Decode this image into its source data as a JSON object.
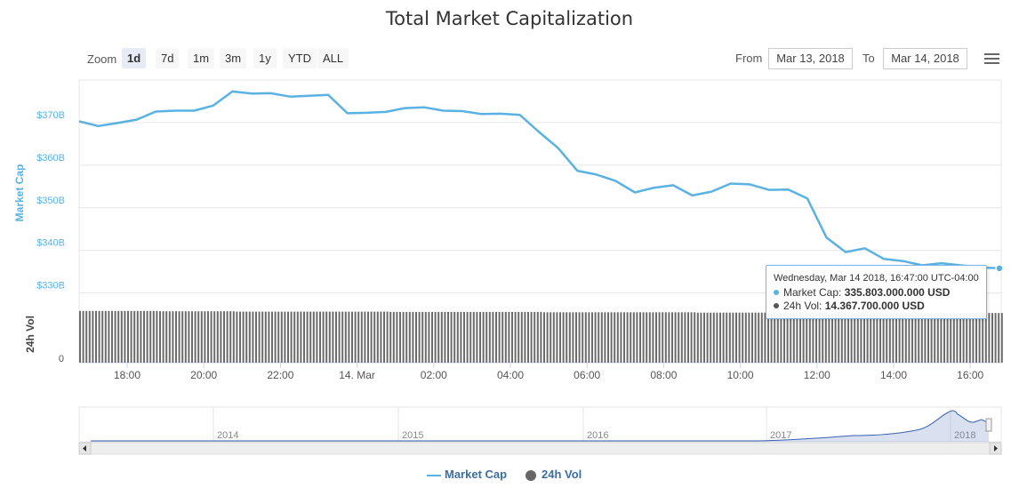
{
  "chart_data": {
    "type": "line",
    "title": "Total Market Capitalization",
    "series": [
      {
        "name": "Market Cap",
        "x": [
          "17:00",
          "17:30",
          "18:00",
          "18:30",
          "19:00",
          "19:30",
          "20:00",
          "20:30",
          "21:00",
          "21:30",
          "22:00",
          "22:30",
          "23:00",
          "23:30",
          "00:00",
          "00:30",
          "01:00",
          "01:30",
          "02:00",
          "02:30",
          "03:00",
          "03:30",
          "04:00",
          "04:30",
          "05:00",
          "05:30",
          "06:00",
          "06:30",
          "07:00",
          "07:30",
          "08:00",
          "08:30",
          "09:00",
          "09:30",
          "10:00",
          "10:30",
          "11:00",
          "11:30",
          "12:00",
          "12:30",
          "13:00",
          "13:30",
          "14:00",
          "14:30",
          "15:00",
          "15:30",
          "16:00",
          "16:30",
          "16:47"
        ],
        "values": [
          370.3,
          369.2,
          369.9,
          370.7,
          372.6,
          372.8,
          372.8,
          374.0,
          377.3,
          376.8,
          376.9,
          376.1,
          376.3,
          376.5,
          372.2,
          372.3,
          372.5,
          373.4,
          373.6,
          372.8,
          372.7,
          372.0,
          372.1,
          371.8,
          367.8,
          364.0,
          358.7,
          357.8,
          356.3,
          353.6,
          354.7,
          355.3,
          352.9,
          353.8,
          355.7,
          355.5,
          354.2,
          354.3,
          352.2,
          343.0,
          339.6,
          340.5,
          338.0,
          337.5,
          336.5,
          337.0,
          336.5,
          336.0,
          335.8
        ]
      },
      {
        "name": "24h Vol",
        "values": [
          15.0,
          14.9,
          14.8,
          14.8,
          14.7,
          14.7,
          14.6,
          14.6,
          14.5,
          14.5,
          14.4,
          14.4,
          14.367
        ]
      }
    ],
    "y_axis": {
      "label": "Market Cap",
      "ticks": [
        "$330B",
        "$340B",
        "$350B",
        "$360B",
        "$370B"
      ],
      "tick_values": [
        330,
        340,
        350,
        360,
        370
      ],
      "range": [
        327,
        380
      ]
    },
    "vol_axis": {
      "label": "24h Vol",
      "ticks": [
        "0"
      ]
    },
    "x_axis": {
      "ticks": [
        "18:00",
        "20:00",
        "22:00",
        "14. Mar",
        "02:00",
        "04:00",
        "06:00",
        "08:00",
        "10:00",
        "12:00",
        "14:00",
        "16:00"
      ]
    },
    "navigator": {
      "years": [
        "2014",
        "2015",
        "2016",
        "2017",
        "2018"
      ]
    },
    "grid": true,
    "legend_position": "bottom-center"
  },
  "ui": {
    "zoom_label": "Zoom",
    "zoom_buttons": [
      "1d",
      "7d",
      "1m",
      "3m",
      "1y",
      "YTD",
      "ALL"
    ],
    "active_zoom": "1d",
    "from_label": "From",
    "from_value": "Mar 13, 2018",
    "to_label": "To",
    "to_value": "Mar 14, 2018"
  },
  "tooltip": {
    "header": "Wednesday, Mar 14 2018, 16:47:00 UTC-04:00",
    "mc_label": "Market Cap:",
    "mc_value": "335.803.000.000 USD",
    "vol_label": "24h Vol:",
    "vol_value": "14.367.700.000 USD"
  },
  "legend": {
    "market_cap": "Market Cap",
    "vol": "24h Vol"
  },
  "colors": {
    "market_cap": "#5ab2e3",
    "vol": "#555555",
    "axis_label": "#5ab2e3"
  }
}
